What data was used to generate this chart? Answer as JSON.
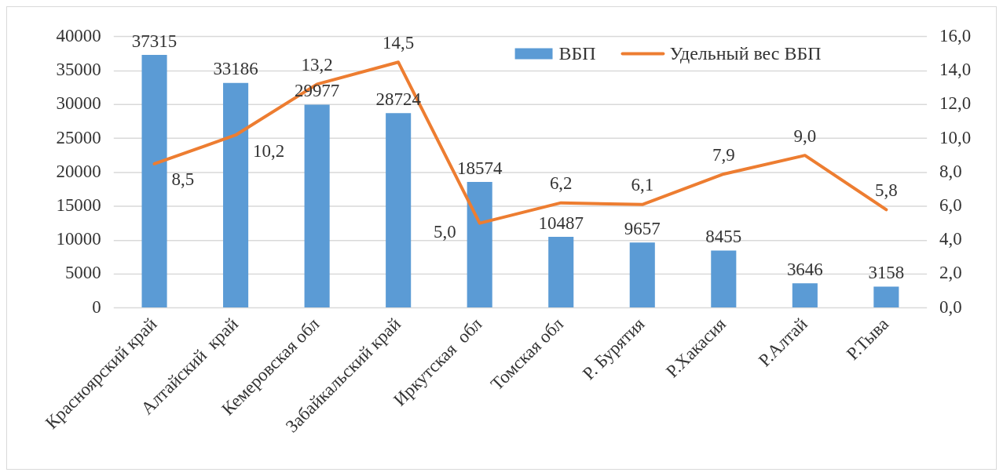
{
  "chart_data": {
    "type": "bar",
    "categories": [
      "Красноярский край",
      "Алтайский  край",
      "Кемеровская обл",
      "Забайкальский край",
      "Иркутская  обл",
      "Томская обл",
      "Р. Бурятия",
      "Р.Хакасия",
      "Р.Алтай",
      "Р.Тыва"
    ],
    "series": [
      {
        "name": "ВБП",
        "color": "#5b9bd5",
        "values": [
          37315,
          33186,
          29977,
          28724,
          18574,
          10487,
          9657,
          8455,
          3646,
          3158
        ],
        "value_labels": [
          "37315",
          "33186",
          "29977",
          "28724",
          "18574",
          "10487",
          "9657",
          "8455",
          "3646",
          "3158"
        ]
      },
      {
        "name": "Удельный вес ВБП",
        "type": "line",
        "axis": "y2",
        "color": "#ed7d31",
        "values": [
          8.5,
          10.2,
          13.2,
          14.5,
          5.0,
          6.2,
          6.1,
          7.9,
          9.0,
          5.8
        ],
        "value_labels": [
          "8,5",
          "10,2",
          "13,2",
          "14,5",
          "5,0",
          "6,2",
          "6,1",
          "7,9",
          "9,0",
          "5,8"
        ]
      }
    ],
    "ylim": [
      0,
      40000
    ],
    "yticks": [
      0,
      5000,
      10000,
      15000,
      20000,
      25000,
      30000,
      35000,
      40000
    ],
    "y2lim": [
      0,
      16
    ],
    "y2ticks": [
      {
        "value": 0,
        "label": "0,0"
      },
      {
        "value": 2,
        "label": "2,0"
      },
      {
        "value": 4,
        "label": "4,0"
      },
      {
        "value": 6,
        "label": "6,0"
      },
      {
        "value": 8,
        "label": "8,0"
      },
      {
        "value": 10,
        "label": "10,0"
      },
      {
        "value": 12,
        "label": "12,0"
      },
      {
        "value": 14,
        "label": "14,0"
      },
      {
        "value": 16,
        "label": "16,0"
      }
    ],
    "grid": "y",
    "legend": "top right",
    "marker": "none",
    "line_style": "solid"
  }
}
